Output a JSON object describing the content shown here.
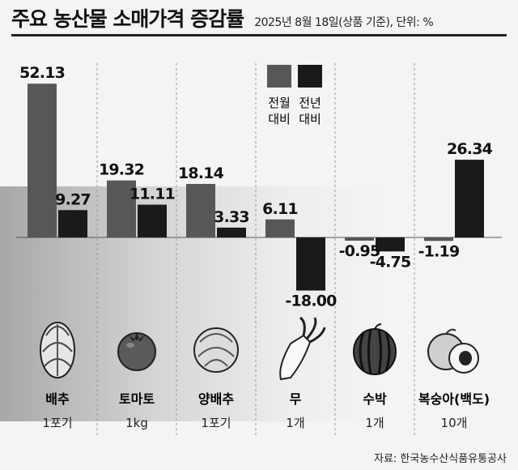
{
  "header": {
    "title": "주요 농산물 소매가격 증감률",
    "subtitle": "2025년 8월 18일(상품 기준), 단위: %"
  },
  "legend": {
    "items": [
      {
        "label_line1": "전월",
        "label_line2": "대비",
        "color": "#575757"
      },
      {
        "label_line1": "전년",
        "label_line2": "대비",
        "color": "#1a1a1a"
      }
    ]
  },
  "chart_data": {
    "type": "bar",
    "categories": [
      "배추",
      "토마토",
      "양배추",
      "무",
      "수박",
      "복숭아(백도)"
    ],
    "units": [
      "1포기",
      "1kg",
      "1포기",
      "1개",
      "1개",
      "10개"
    ],
    "series": [
      {
        "name": "전월 대비",
        "values": [
          52.13,
          19.32,
          18.14,
          6.11,
          -0.95,
          -1.19
        ],
        "labels": [
          "52.13",
          "19.32",
          "18.14",
          "6.11",
          "-0.95",
          "-1.19"
        ]
      },
      {
        "name": "전년 대비",
        "values": [
          9.27,
          11.11,
          3.33,
          -18.0,
          -4.75,
          26.34
        ],
        "labels": [
          "9.27",
          "11.11",
          "3.33",
          "-18.00",
          "-4.75",
          "26.34"
        ]
      }
    ],
    "grid": false
  },
  "icons": [
    "napa-cabbage-icon",
    "tomato-icon",
    "cabbage-icon",
    "radish-icon",
    "watermelon-icon",
    "peach-icon"
  ],
  "source": "자료: 한국농수산식품유통공사"
}
